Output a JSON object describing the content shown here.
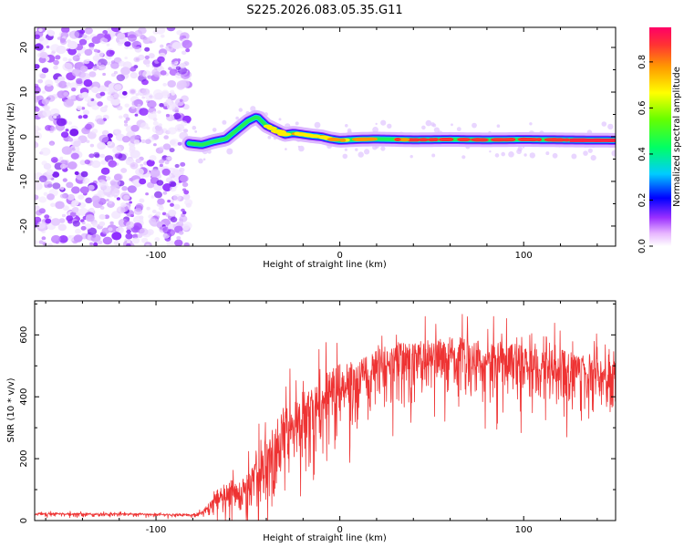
{
  "title": "S225.2026.083.05.35.G11",
  "chart_data": [
    {
      "type": "heatmap",
      "name": "spectrogram",
      "xlabel": "Height of straight line (km)",
      "ylabel": "Frequency (Hz)",
      "xlim": [
        -166,
        150
      ],
      "ylim": [
        -24.5,
        24.5
      ],
      "xticks": [
        -100,
        0,
        100
      ],
      "xtick_labels": [
        "-100",
        "0",
        "100"
      ],
      "yticks": [
        -20,
        -10,
        0,
        10,
        20
      ],
      "ytick_labels": [
        "-20",
        "-10",
        "0",
        "10",
        "20"
      ],
      "noise_region_x": [
        -166,
        -82
      ],
      "signal_track": {
        "x": [
          -82,
          -75,
          -68,
          -62,
          -56,
          -50,
          -45,
          -40,
          -35,
          -30,
          -25,
          -20,
          -15,
          -10,
          -5,
          0,
          10,
          20,
          40,
          60,
          80,
          100,
          120,
          150
        ],
        "y": [
          -1.5,
          -1.8,
          -1.0,
          -0.5,
          1.5,
          3.5,
          4.5,
          2.5,
          1.5,
          0.5,
          0.8,
          0.5,
          0.2,
          0.0,
          -0.5,
          -0.8,
          -0.6,
          -0.5,
          -0.7,
          -0.6,
          -0.7,
          -0.6,
          -0.7,
          -0.8
        ]
      },
      "colorbar": {
        "label": "Normalized spectral amplitude",
        "range": [
          0,
          0.95
        ],
        "ticks": [
          0.0,
          0.2,
          0.4,
          0.6,
          0.8
        ],
        "tick_labels": [
          "0.0",
          "0.2",
          "0.4",
          "0.6",
          "0.8"
        ]
      }
    },
    {
      "type": "line",
      "name": "snr",
      "xlabel": "Height of straight line (km)",
      "ylabel": "SNR (10 * v/v)",
      "xlim": [
        -166,
        150
      ],
      "ylim": [
        0,
        710
      ],
      "xticks": [
        -100,
        0,
        100
      ],
      "xtick_labels": [
        "-100",
        "0",
        "100"
      ],
      "yticks": [
        0,
        200,
        400,
        600
      ],
      "ytick_labels": [
        "0",
        "200",
        "400",
        "600"
      ],
      "color": "#ee3333",
      "envelope": {
        "x": [
          -166,
          -120,
          -80,
          -75,
          -70,
          -65,
          -60,
          -55,
          -50,
          -45,
          -40,
          -35,
          -30,
          -25,
          -20,
          -15,
          -10,
          -5,
          0,
          10,
          20,
          30,
          40,
          50,
          60,
          70,
          75,
          78,
          80,
          90,
          100,
          110,
          120,
          130,
          140,
          150
        ],
        "mean": [
          22,
          20,
          18,
          25,
          45,
          80,
          90,
          80,
          100,
          150,
          180,
          230,
          280,
          300,
          330,
          350,
          380,
          400,
          420,
          440,
          480,
          500,
          510,
          520,
          520,
          530,
          520,
          480,
          510,
          510,
          500,
          490,
          490,
          470,
          460,
          450
        ],
        "amp": [
          10,
          10,
          10,
          15,
          50,
          90,
          110,
          100,
          130,
          170,
          200,
          220,
          250,
          200,
          220,
          230,
          220,
          220,
          220,
          200,
          180,
          180,
          170,
          170,
          180,
          170,
          160,
          140,
          170,
          170,
          170,
          160,
          170,
          170,
          170,
          160
        ]
      }
    }
  ]
}
